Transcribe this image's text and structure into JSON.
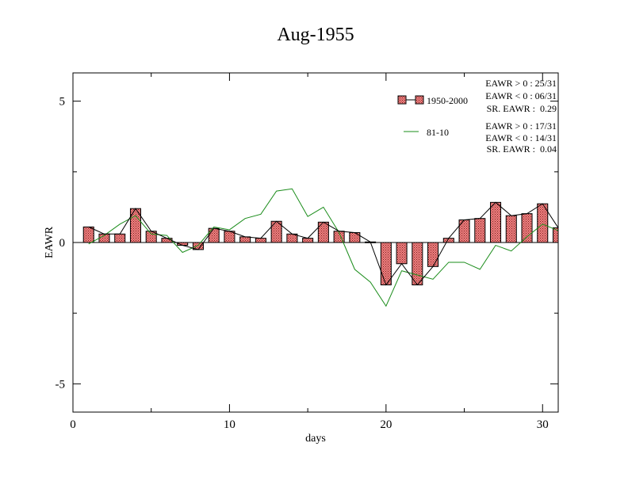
{
  "chart_data": {
    "type": "bar",
    "title": "Aug-1955",
    "xlabel": "days",
    "ylabel": "EAWR",
    "xlim": [
      0,
      31
    ],
    "ylim": [
      -6,
      6
    ],
    "x_ticks": [
      0,
      10,
      20,
      30
    ],
    "y_ticks": [
      -5,
      0,
      5
    ],
    "x_tick_labels": [
      "0",
      "10",
      "20",
      "30"
    ],
    "y_tick_labels": [
      "-5",
      "0",
      "5"
    ],
    "legend": [
      {
        "name": "1950-2000",
        "stats": [
          "EAWR > 0 : 25/31",
          "EAWR < 0 : 06/31",
          "SR. EAWR :  0.29"
        ]
      },
      {
        "name": "81-10",
        "stats": [
          "EAWR > 0 : 17/31",
          "EAWR < 0 : 14/31",
          "SR. EAWR :  0.04"
        ]
      }
    ],
    "legend_position": "top-right",
    "grid": false,
    "days": [
      1,
      2,
      3,
      4,
      5,
      6,
      7,
      8,
      9,
      10,
      11,
      12,
      13,
      14,
      15,
      16,
      17,
      18,
      19,
      20,
      21,
      22,
      23,
      24,
      25,
      26,
      27,
      28,
      29,
      30,
      31
    ],
    "series": [
      {
        "name": "1950-2000",
        "kind": "bar+line",
        "values": [
          0.55,
          0.3,
          0.3,
          1.2,
          0.4,
          0.15,
          -0.1,
          -0.25,
          0.5,
          0.4,
          0.2,
          0.15,
          0.75,
          0.3,
          0.15,
          0.72,
          0.4,
          0.35,
          0.02,
          -1.5,
          -0.75,
          -1.5,
          -0.85,
          0.15,
          0.8,
          0.85,
          1.42,
          0.95,
          1.02,
          1.37,
          0.52
        ]
      },
      {
        "name": "81-10",
        "kind": "line",
        "values": [
          -0.05,
          0.25,
          0.65,
          0.95,
          0.3,
          0.25,
          -0.35,
          -0.1,
          0.55,
          0.45,
          0.85,
          1.0,
          1.82,
          1.9,
          0.92,
          1.25,
          0.35,
          -0.95,
          -1.4,
          -2.25,
          -1.0,
          -1.15,
          -1.3,
          -0.7,
          -0.7,
          -0.95,
          -0.1,
          -0.3,
          0.2,
          0.65,
          0.42
        ]
      }
    ],
    "colors": {
      "bar_fill": "#f08080",
      "bar_hatch": "#7a2020",
      "bar_stroke": "#000000",
      "line_1950_2000": "#000000",
      "line_81_10": "#1a8c1a"
    }
  }
}
